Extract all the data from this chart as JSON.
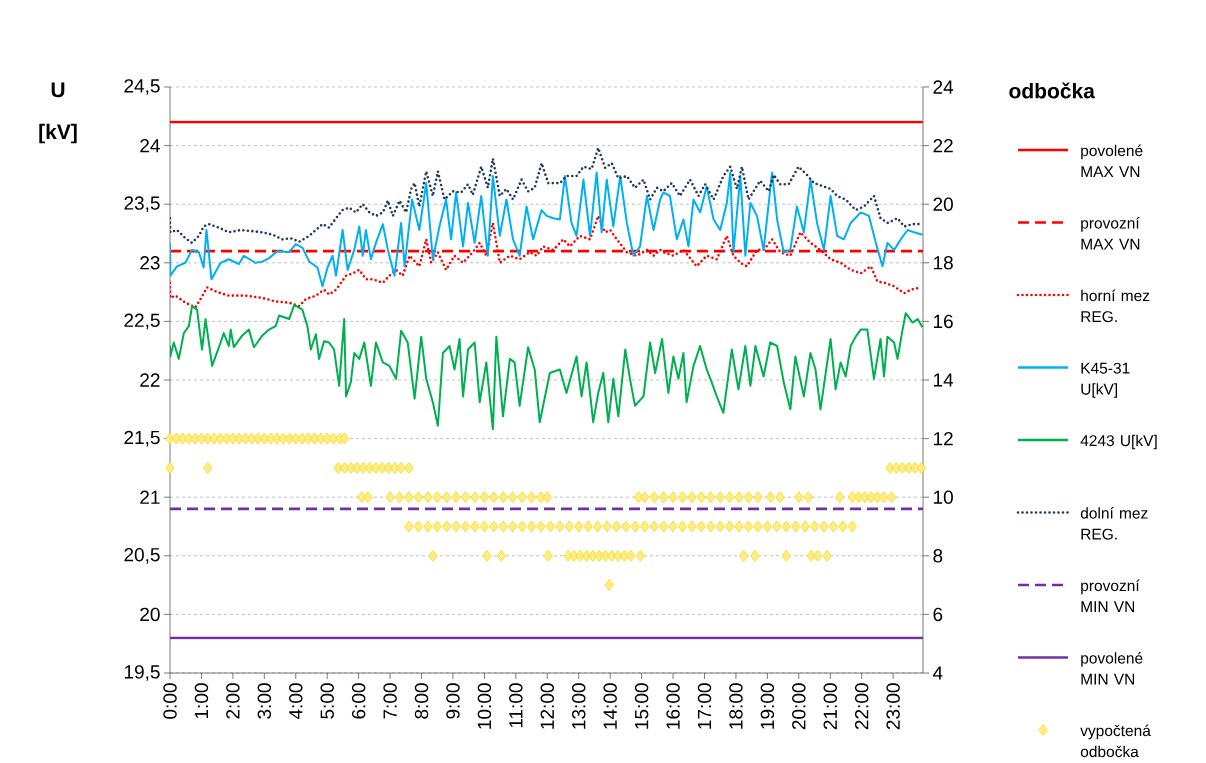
{
  "chart_data": {
    "type": "line",
    "ylabel": "U [kV]",
    "y2label": "odbočka",
    "xlim": [
      0,
      23.95
    ],
    "ylim": [
      19.5,
      24.5
    ],
    "y2lim": [
      4,
      24
    ],
    "xticks": [
      {
        "value": 0,
        "label": "0:00"
      },
      {
        "value": 1,
        "label": "1:00"
      },
      {
        "value": 2,
        "label": "2:00"
      },
      {
        "value": 3,
        "label": "3:00"
      },
      {
        "value": 4,
        "label": "4:00"
      },
      {
        "value": 5,
        "label": "5:00"
      },
      {
        "value": 6,
        "label": "6:00"
      },
      {
        "value": 7,
        "label": "7:00"
      },
      {
        "value": 8,
        "label": "8:00"
      },
      {
        "value": 9,
        "label": "9:00"
      },
      {
        "value": 10,
        "label": "10:00"
      },
      {
        "value": 11,
        "label": "11:00"
      },
      {
        "value": 12,
        "label": "12:00"
      },
      {
        "value": 13,
        "label": "13:00"
      },
      {
        "value": 14,
        "label": "14:00"
      },
      {
        "value": 15,
        "label": "15:00"
      },
      {
        "value": 16,
        "label": "16:00"
      },
      {
        "value": 17,
        "label": "17:00"
      },
      {
        "value": 18,
        "label": "18:00"
      },
      {
        "value": 19,
        "label": "19:00"
      },
      {
        "value": 20,
        "label": "20:00"
      },
      {
        "value": 21,
        "label": "21:00"
      },
      {
        "value": 22,
        "label": "22:00"
      },
      {
        "value": 23,
        "label": "23:00"
      }
    ],
    "yticks": [
      {
        "value": 19.5,
        "label": "19,5"
      },
      20,
      {
        "value": 20.5,
        "label": "20,5"
      },
      21,
      {
        "value": 21.5,
        "label": "21,5"
      },
      22,
      {
        "value": 22.5,
        "label": "22,5"
      },
      23,
      {
        "value": 23.5,
        "label": "23,5"
      },
      24,
      {
        "value": 24.5,
        "label": "24,5"
      }
    ],
    "y2ticks": [
      4,
      6,
      8,
      10,
      12,
      14,
      16,
      18,
      20,
      22,
      24
    ],
    "grid": "y",
    "legend": "right",
    "series": [
      {
        "name": "povolené MAX VN",
        "color": "#ff0000",
        "line_style": "solid",
        "marker": "none",
        "x": [
          0,
          23.95
        ],
        "values": [
          24.2,
          24.2
        ]
      },
      {
        "name": "provozní MAX VN",
        "color": "#ff0000",
        "line_style": "dashed",
        "marker": "none",
        "x": [
          0,
          23.95
        ],
        "values": [
          23.1,
          23.1
        ]
      },
      {
        "name": "horní mez REG.",
        "color": "#ff0000",
        "line_style": "dotted",
        "marker": "none",
        "x": [
          0,
          0.01,
          0.17,
          0.49,
          0.81,
          0.97,
          1.18,
          1.5,
          1.87,
          2.4,
          2.94,
          3.36,
          3.79,
          4.11,
          4.32,
          4.64,
          4.9,
          5.06,
          5.28,
          5.44,
          5.6,
          5.81,
          6.02,
          6.23,
          6.45,
          6.77,
          6.98,
          7.19,
          7.4,
          7.62,
          7.93,
          8.15,
          8.31,
          8.52,
          8.78,
          9.05,
          9.32,
          9.63,
          9.85,
          10.06,
          10.27,
          10.49,
          10.81,
          11.12,
          11.44,
          11.66,
          11.87,
          12.19,
          12.51,
          12.72,
          13.04,
          13.36,
          13.62,
          13.84,
          14.0,
          14.21,
          14.53,
          14.85,
          15.17,
          15.38,
          15.59,
          15.69,
          16.01,
          16.33,
          16.75,
          17.07,
          17.39,
          17.71,
          17.92,
          18.14,
          18.35,
          18.67,
          18.88,
          19.15,
          19.41,
          19.73,
          20.05,
          20.37,
          20.69,
          21.01,
          21.33,
          21.65,
          21.97,
          22.29,
          22.5,
          22.71,
          23.03,
          23.35,
          23.56,
          23.88
        ],
        "values": [
          22.83,
          22.7,
          22.72,
          22.66,
          22.62,
          22.69,
          22.79,
          22.75,
          22.72,
          22.72,
          22.7,
          22.67,
          22.66,
          22.63,
          22.69,
          22.72,
          22.77,
          22.73,
          22.77,
          22.83,
          22.89,
          22.91,
          22.94,
          22.86,
          22.86,
          22.83,
          22.89,
          22.94,
          22.89,
          23.06,
          22.97,
          23.2,
          23.0,
          23.09,
          22.94,
          23.06,
          23.0,
          23.09,
          23.17,
          23.06,
          23.34,
          23.0,
          23.06,
          23.03,
          23.09,
          23.06,
          23.14,
          23.11,
          23.2,
          23.14,
          23.23,
          23.2,
          23.4,
          23.26,
          23.28,
          23.2,
          23.09,
          23.06,
          23.11,
          23.06,
          23.11,
          23.09,
          23.06,
          23.11,
          22.97,
          23.06,
          23.03,
          23.23,
          23.06,
          23.0,
          22.97,
          23.11,
          23.11,
          23.2,
          23.09,
          23.06,
          23.26,
          23.17,
          23.11,
          23.03,
          23.0,
          22.94,
          22.91,
          22.97,
          22.84,
          22.83,
          22.8,
          22.74,
          22.77,
          22.79
        ]
      },
      {
        "name": "K45-31 U[kV]",
        "color": "#00b0f0",
        "line_style": "solid",
        "marker": "none",
        "x": [
          0,
          0.01,
          0.22,
          0.49,
          0.7,
          0.92,
          1.07,
          1.16,
          1.32,
          1.61,
          1.87,
          2.19,
          2.35,
          2.72,
          2.94,
          3.15,
          3.42,
          3.79,
          4.0,
          4.21,
          4.43,
          4.69,
          4.85,
          5.01,
          5.17,
          5.28,
          5.49,
          5.65,
          5.86,
          6.02,
          6.13,
          6.23,
          6.39,
          6.55,
          6.77,
          6.93,
          7.14,
          7.35,
          7.46,
          7.7,
          7.93,
          8.15,
          8.36,
          8.57,
          8.78,
          8.94,
          9.1,
          9.32,
          9.48,
          9.69,
          9.9,
          10.11,
          10.27,
          10.49,
          10.7,
          10.91,
          11.12,
          11.34,
          11.55,
          11.82,
          11.98,
          12.19,
          12.4,
          12.56,
          12.77,
          12.93,
          13.15,
          13.36,
          13.57,
          13.73,
          13.89,
          14.1,
          14.32,
          14.53,
          14.74,
          14.95,
          15.17,
          15.38,
          15.59,
          15.69,
          15.9,
          16.12,
          16.33,
          16.49,
          16.65,
          16.86,
          17.07,
          17.29,
          17.5,
          17.71,
          17.82,
          17.92,
          18.14,
          18.3,
          18.46,
          18.67,
          18.88,
          19.15,
          19.31,
          19.52,
          19.73,
          19.94,
          20.16,
          20.37,
          20.58,
          20.8,
          21.01,
          21.22,
          21.43,
          21.65,
          21.97,
          22.23,
          22.45,
          22.66,
          22.82,
          23.03,
          23.24,
          23.46,
          23.67,
          23.93
        ],
        "values": [
          23.17,
          22.89,
          22.97,
          23.0,
          23.11,
          23.09,
          22.96,
          23.28,
          22.86,
          23.0,
          23.03,
          22.99,
          23.06,
          23.0,
          23.01,
          23.04,
          23.1,
          23.09,
          23.16,
          23.13,
          23.01,
          22.96,
          22.8,
          22.96,
          23.06,
          22.89,
          23.28,
          22.94,
          23.11,
          23.31,
          23.06,
          23.28,
          23.03,
          23.17,
          23.33,
          23.11,
          22.89,
          23.34,
          22.97,
          23.54,
          23.28,
          23.68,
          23.03,
          23.31,
          23.54,
          23.2,
          23.6,
          23.14,
          23.51,
          23.17,
          23.57,
          23.06,
          23.74,
          23.23,
          23.54,
          23.2,
          23.06,
          23.48,
          23.2,
          23.45,
          23.4,
          23.38,
          23.37,
          23.74,
          23.34,
          23.23,
          23.71,
          23.23,
          23.77,
          23.26,
          23.71,
          23.31,
          23.74,
          23.34,
          23.06,
          23.14,
          23.57,
          23.28,
          23.54,
          23.6,
          23.57,
          23.2,
          23.37,
          23.14,
          23.54,
          23.43,
          23.65,
          23.37,
          23.28,
          23.51,
          23.77,
          23.09,
          23.74,
          23.06,
          23.51,
          23.4,
          23.11,
          23.77,
          23.37,
          23.09,
          23.11,
          23.48,
          23.26,
          23.71,
          23.34,
          23.11,
          23.57,
          23.23,
          23.2,
          23.34,
          23.43,
          23.4,
          23.17,
          22.97,
          23.17,
          23.11,
          23.2,
          23.28,
          23.26,
          23.24
        ]
      },
      {
        "name": "4243 U[kV]",
        "color": "#00b050",
        "line_style": "solid",
        "marker": "none",
        "x": [
          0,
          0.01,
          0.12,
          0.28,
          0.44,
          0.6,
          0.7,
          0.86,
          1.02,
          1.13,
          1.34,
          1.61,
          1.71,
          1.87,
          1.93,
          2.03,
          2.3,
          2.51,
          2.67,
          2.94,
          3.15,
          3.36,
          3.47,
          3.79,
          3.95,
          4.21,
          4.37,
          4.48,
          4.64,
          4.74,
          4.9,
          5.06,
          5.22,
          5.38,
          5.54,
          5.6,
          5.75,
          5.86,
          6.02,
          6.18,
          6.39,
          6.55,
          6.77,
          6.98,
          7.19,
          7.35,
          7.56,
          7.78,
          7.88,
          7.99,
          8.15,
          8.36,
          8.52,
          8.68,
          8.89,
          9.05,
          9.21,
          9.32,
          9.48,
          9.69,
          9.85,
          10.06,
          10.27,
          10.38,
          10.59,
          10.81,
          10.96,
          11.12,
          11.39,
          11.6,
          11.76,
          12.08,
          12.4,
          12.61,
          12.93,
          13.09,
          13.25,
          13.46,
          13.62,
          13.78,
          13.94,
          14.1,
          14.26,
          14.48,
          14.63,
          14.79,
          15.06,
          15.27,
          15.43,
          15.65,
          15.85,
          16.01,
          16.17,
          16.33,
          16.43,
          16.65,
          16.86,
          17.07,
          17.23,
          17.39,
          17.6,
          17.87,
          18.08,
          18.3,
          18.46,
          18.62,
          18.88,
          19.09,
          19.31,
          19.52,
          19.73,
          19.89,
          20.16,
          20.37,
          20.53,
          20.69,
          21.01,
          21.17,
          21.33,
          21.49,
          21.65,
          21.81,
          21.97,
          22.18,
          22.39,
          22.6,
          22.71,
          22.82,
          23.03,
          23.14,
          23.3,
          23.4,
          23.62,
          23.78,
          23.93
        ],
        "values": [
          22.29,
          22.2,
          22.32,
          22.18,
          22.4,
          22.46,
          22.63,
          22.6,
          22.26,
          22.52,
          22.12,
          22.32,
          22.4,
          22.29,
          22.43,
          22.28,
          22.38,
          22.43,
          22.28,
          22.38,
          22.43,
          22.46,
          22.55,
          22.52,
          22.64,
          22.6,
          22.46,
          22.26,
          22.39,
          22.18,
          22.33,
          22.32,
          22.26,
          21.95,
          22.52,
          21.86,
          21.98,
          22.23,
          22.18,
          22.32,
          21.95,
          22.32,
          22.15,
          22.12,
          22.01,
          22.42,
          22.32,
          21.84,
          22.09,
          22.37,
          22.01,
          21.81,
          21.61,
          22.23,
          22.29,
          22.09,
          22.35,
          21.86,
          22.26,
          22.32,
          21.81,
          22.15,
          21.58,
          22.37,
          21.69,
          22.18,
          22.15,
          21.78,
          22.28,
          22.09,
          21.64,
          22.06,
          22.09,
          21.89,
          22.2,
          21.86,
          22.15,
          21.64,
          21.89,
          22.06,
          21.64,
          22.01,
          21.69,
          22.26,
          22.01,
          21.78,
          21.86,
          22.32,
          22.06,
          22.35,
          21.89,
          22.2,
          22.01,
          22.23,
          21.81,
          22.12,
          22.29,
          22.09,
          21.98,
          21.86,
          21.72,
          22.26,
          21.92,
          22.29,
          21.95,
          22.29,
          22.03,
          22.32,
          22.29,
          21.98,
          21.75,
          22.2,
          21.86,
          22.23,
          22.09,
          21.75,
          22.35,
          21.92,
          22.15,
          22.03,
          22.29,
          22.37,
          22.43,
          22.43,
          22.01,
          22.35,
          22.03,
          22.37,
          22.32,
          22.18,
          22.43,
          22.57,
          22.49,
          22.52,
          22.45
        ]
      },
      {
        "name": "dolní mez REG.",
        "color": "#1f3864",
        "line_style": "dotted",
        "marker": "none",
        "x": [
          0,
          0.01,
          0.22,
          0.49,
          0.7,
          0.92,
          1.07,
          1.23,
          1.55,
          1.87,
          2.25,
          2.62,
          2.94,
          3.26,
          3.57,
          3.84,
          4.11,
          4.43,
          4.64,
          4.85,
          5.06,
          5.28,
          5.49,
          5.7,
          5.91,
          6.13,
          6.34,
          6.55,
          6.77,
          6.93,
          7.09,
          7.3,
          7.51,
          7.67,
          7.78,
          7.93,
          8.15,
          8.36,
          8.52,
          8.73,
          9.0,
          9.26,
          9.48,
          9.63,
          9.9,
          10.11,
          10.27,
          10.49,
          10.7,
          10.91,
          11.18,
          11.39,
          11.6,
          11.82,
          12.03,
          12.4,
          12.61,
          12.93,
          13.15,
          13.41,
          13.62,
          13.84,
          14.05,
          14.26,
          14.53,
          14.79,
          15.06,
          15.27,
          15.49,
          15.69,
          15.96,
          16.22,
          16.54,
          16.81,
          17.02,
          17.29,
          17.6,
          17.82,
          18.03,
          18.19,
          18.4,
          18.77,
          19.04,
          19.2,
          19.41,
          19.68,
          19.99,
          20.26,
          20.48,
          20.8,
          21.01,
          21.22,
          21.49,
          21.81,
          22.07,
          22.39,
          22.6,
          22.82,
          23.14,
          23.35,
          23.62,
          23.88
        ],
        "values": [
          23.38,
          23.26,
          23.28,
          23.21,
          23.17,
          23.23,
          23.31,
          23.33,
          23.3,
          23.26,
          23.28,
          23.27,
          23.26,
          23.24,
          23.2,
          23.21,
          23.18,
          23.23,
          23.28,
          23.33,
          23.3,
          23.38,
          23.45,
          23.47,
          23.43,
          23.5,
          23.43,
          23.4,
          23.43,
          23.53,
          23.4,
          23.53,
          23.43,
          23.63,
          23.68,
          23.48,
          23.78,
          23.57,
          23.78,
          23.54,
          23.61,
          23.6,
          23.67,
          23.58,
          23.82,
          23.64,
          23.89,
          23.57,
          23.63,
          23.54,
          23.71,
          23.61,
          23.64,
          23.85,
          23.68,
          23.68,
          23.74,
          23.74,
          23.82,
          23.8,
          23.98,
          23.81,
          23.85,
          23.72,
          23.74,
          23.64,
          23.71,
          23.54,
          23.64,
          23.61,
          23.68,
          23.57,
          23.71,
          23.57,
          23.67,
          23.54,
          23.74,
          23.82,
          23.63,
          23.82,
          23.54,
          23.7,
          23.61,
          23.75,
          23.67,
          23.67,
          23.82,
          23.75,
          23.68,
          23.65,
          23.63,
          23.57,
          23.54,
          23.45,
          23.48,
          23.57,
          23.38,
          23.34,
          23.38,
          23.31,
          23.33,
          23.33
        ]
      },
      {
        "name": "provozní MIN VN",
        "color": "#7030a0",
        "line_style": "dashed",
        "marker": "none",
        "x": [
          0,
          23.95
        ],
        "values": [
          20.9,
          20.9
        ]
      },
      {
        "name": "povolené MIN VN",
        "color": "#7030a0",
        "line_style": "solid",
        "marker": "none",
        "x": [
          0,
          23.95
        ],
        "values": [
          19.8,
          19.8
        ]
      },
      {
        "name": "vypočtená odbočka",
        "color": "#ffd700",
        "type": "scatter",
        "axis": "y2",
        "marker": "diamond",
        "x": [
          0,
          0.2,
          0.4,
          0.6,
          0.8,
          1.0,
          1.2,
          1.4,
          1.6,
          1.8,
          2.0,
          2.2,
          2.4,
          2.6,
          2.8,
          3.0,
          3.2,
          3.4,
          3.6,
          3.8,
          4.0,
          4.2,
          4.4,
          4.6,
          4.8,
          5.0,
          5.2,
          5.4,
          5.55,
          0,
          1.2,
          5.35,
          5.55,
          5.75,
          5.95,
          6.15,
          6.35,
          6.55,
          6.75,
          6.95,
          7.15,
          7.35,
          7.6,
          22.9,
          23.1,
          23.3,
          23.5,
          23.7,
          23.9,
          6.1,
          6.3,
          7.0,
          7.3,
          7.6,
          7.9,
          8.2,
          8.5,
          8.8,
          9.1,
          9.4,
          9.7,
          10.0,
          10.3,
          10.6,
          10.9,
          11.2,
          11.5,
          11.8,
          12.0,
          14.9,
          15.1,
          15.4,
          15.7,
          16.0,
          16.3,
          16.6,
          16.9,
          17.2,
          17.5,
          17.8,
          18.1,
          18.4,
          18.7,
          19.1,
          19.4,
          20.0,
          20.3,
          21.3,
          21.7,
          21.9,
          22.1,
          22.3,
          22.5,
          22.7,
          22.95,
          7.6,
          7.9,
          8.2,
          8.5,
          8.8,
          9.1,
          9.4,
          9.7,
          10.0,
          10.3,
          10.6,
          10.9,
          11.2,
          11.5,
          11.8,
          12.1,
          12.4,
          12.7,
          13.0,
          13.3,
          13.6,
          13.9,
          14.2,
          14.5,
          14.8,
          15.1,
          15.4,
          15.7,
          16.0,
          16.3,
          16.6,
          16.9,
          17.2,
          17.5,
          17.8,
          18.1,
          18.4,
          18.7,
          19.0,
          19.3,
          19.6,
          19.9,
          20.2,
          20.5,
          20.8,
          21.1,
          21.4,
          21.7,
          8.36,
          10.08,
          10.54,
          12.03,
          12.66,
          12.85,
          13.05,
          13.25,
          13.45,
          13.65,
          13.85,
          14.05,
          14.25,
          14.45,
          14.65,
          14.96,
          18.24,
          18.6,
          19.6,
          20.4,
          20.6,
          20.9,
          13.97
        ],
        "values": [
          12,
          12,
          12,
          12,
          12,
          12,
          12,
          12,
          12,
          12,
          12,
          12,
          12,
          12,
          12,
          12,
          12,
          12,
          12,
          12,
          12,
          12,
          12,
          12,
          12,
          12,
          12,
          12,
          12,
          11,
          11,
          11,
          11,
          11,
          11,
          11,
          11,
          11,
          11,
          11,
          11,
          11,
          11,
          11,
          11,
          11,
          11,
          11,
          11,
          10,
          10,
          10,
          10,
          10,
          10,
          10,
          10,
          10,
          10,
          10,
          10,
          10,
          10,
          10,
          10,
          10,
          10,
          10,
          10,
          10,
          10,
          10,
          10,
          10,
          10,
          10,
          10,
          10,
          10,
          10,
          10,
          10,
          10,
          10,
          10,
          10,
          10,
          10,
          10,
          10,
          10,
          10,
          10,
          10,
          10,
          9,
          9,
          9,
          9,
          9,
          9,
          9,
          9,
          9,
          9,
          9,
          9,
          9,
          9,
          9,
          9,
          9,
          9,
          9,
          9,
          9,
          9,
          9,
          9,
          9,
          9,
          9,
          9,
          9,
          9,
          9,
          9,
          9,
          9,
          9,
          9,
          9,
          9,
          9,
          9,
          9,
          9,
          9,
          9,
          9,
          9,
          9,
          9,
          8,
          8,
          8,
          8,
          8,
          8,
          8,
          8,
          8,
          8,
          8,
          8,
          8,
          8,
          8,
          8,
          8,
          8,
          8,
          8,
          8,
          8,
          7
        ]
      }
    ]
  }
}
